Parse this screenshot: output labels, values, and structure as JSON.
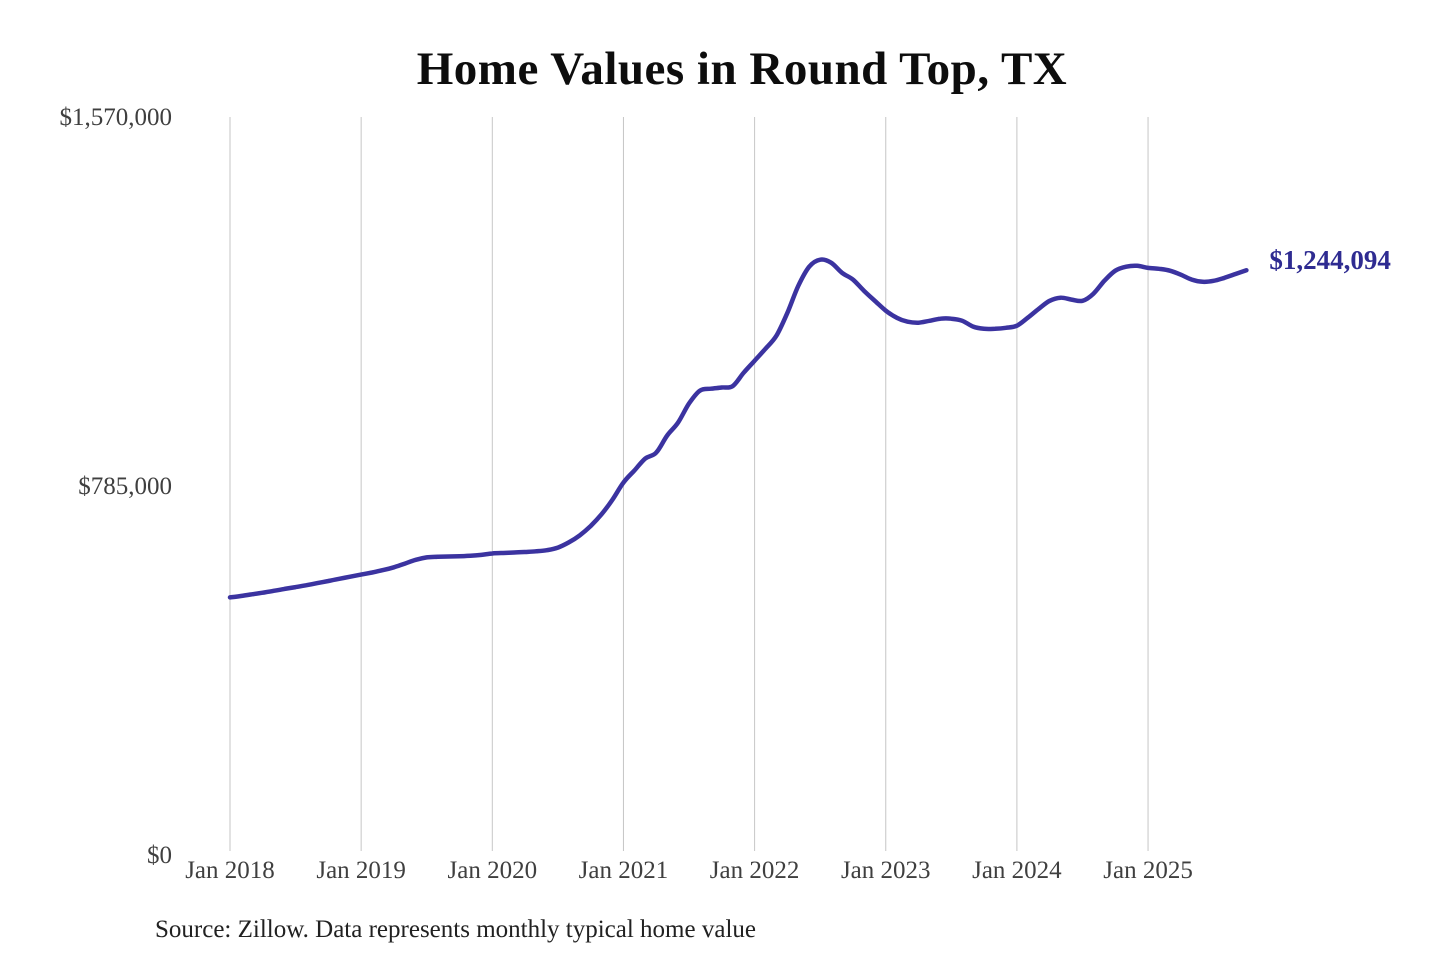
{
  "chart_data": {
    "type": "line",
    "title": "Home Values in Round Top, TX",
    "source_note": "Source: Zillow. Data represents monthly typical home value",
    "end_label": "$1,244,094",
    "end_value": 1244094,
    "xlabel": "",
    "ylabel": "",
    "ylim": [
      0,
      1570000
    ],
    "y_ticks": [
      {
        "label": "$1,570,000",
        "value": 1570000
      },
      {
        "label": "$785,000",
        "value": 785000
      },
      {
        "label": "$0",
        "value": 0
      }
    ],
    "x_tick_labels": [
      "Jan 2018",
      "Jan 2019",
      "Jan 2020",
      "Jan 2021",
      "Jan 2022",
      "Jan 2023",
      "Jan 2024",
      "Jan 2025"
    ],
    "x_range": [
      "Jan 2018",
      "Oct 2025"
    ],
    "frequency": "monthly",
    "grid": "vertical-yearly-only",
    "legend": "none",
    "colors": {
      "line": "#3b33a0",
      "end_label": "#2e2b91",
      "gridline": "#c6c6c6",
      "tick_text": "#3f3f3f",
      "title_text": "#0d0d0d"
    },
    "series": [
      {
        "name": "Monthly typical home value",
        "values": [
          548000,
          551000,
          554500,
          558000,
          562000,
          566000,
          570000,
          574000,
          578500,
          583000,
          587500,
          592000,
          596500,
          601000,
          606000,
          612000,
          620000,
          628000,
          633000,
          634500,
          635000,
          635500,
          636500,
          638500,
          641500,
          642500,
          643500,
          644500,
          646000,
          648500,
          654000,
          665000,
          680000,
          700000,
          725000,
          756000,
          792500,
          818000,
          843500,
          856000,
          892500,
          920000,
          960500,
          988000,
          992000,
          994500,
          997500,
          1026000,
          1051500,
          1077000,
          1105000,
          1153500,
          1211000,
          1251500,
          1266500,
          1260000,
          1238500,
          1224000,
          1200500,
          1179000,
          1158000,
          1143000,
          1134500,
          1132500,
          1136500,
          1141000,
          1141000,
          1136500,
          1124000,
          1119500,
          1119500,
          1121500,
          1126000,
          1143000,
          1162000,
          1179000,
          1185500,
          1181500,
          1179000,
          1194000,
          1221500,
          1243000,
          1251500,
          1253500,
          1249000,
          1247000,
          1243000,
          1234500,
          1224000,
          1219500,
          1221500,
          1228000,
          1236000,
          1244094
        ]
      }
    ]
  }
}
